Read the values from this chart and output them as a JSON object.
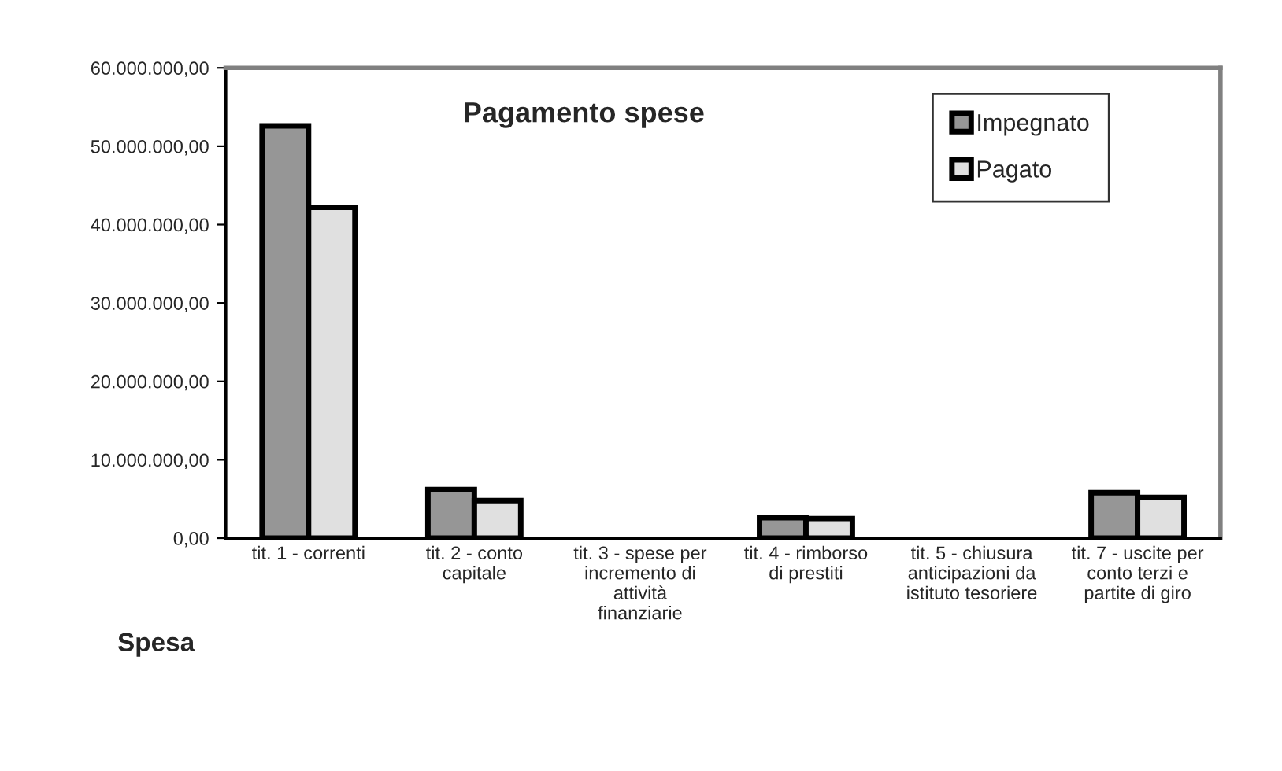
{
  "chart_data": {
    "type": "bar",
    "title": "Pagamento spese",
    "xlabel": "Spesa",
    "categories": [
      "tit. 1 - correnti",
      "tit. 2 - conto\ncapitale",
      "tit. 3 - spese per\nincremento di\nattività\nfinanziarie",
      "tit. 4 - rimborso\ndi prestiti",
      "tit. 5 - chiusura\nanticipazioni da\nistituto tesoriere",
      "tit. 7 - uscite per\nconto terzi e\npartite di giro"
    ],
    "series": [
      {
        "name": "Impegnato",
        "color": "#969696",
        "values": [
          52600000,
          6200000,
          0,
          2600000,
          0,
          5800000
        ]
      },
      {
        "name": "Pagato",
        "color": "#e0e0e0",
        "values": [
          42200000,
          4800000,
          0,
          2500000,
          0,
          5200000
        ]
      }
    ],
    "ylim": [
      0,
      60000000
    ],
    "yticks": [
      {
        "value": 0,
        "label": "0,00"
      },
      {
        "value": 10000000,
        "label": "10.000.000,00"
      },
      {
        "value": 20000000,
        "label": "20.000.000,00"
      },
      {
        "value": 30000000,
        "label": "30.000.000,00"
      },
      {
        "value": 40000000,
        "label": "40.000.000,00"
      },
      {
        "value": 50000000,
        "label": "50.000.000,00"
      },
      {
        "value": 60000000,
        "label": "60.000.000,00"
      }
    ],
    "grid": false,
    "legend": "top right"
  }
}
